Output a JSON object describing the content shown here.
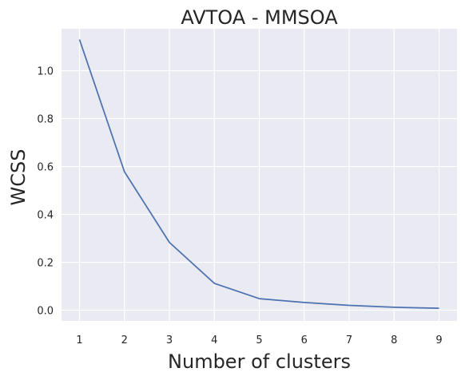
{
  "chart_data": {
    "type": "line",
    "title": "AVTOA - MMSOA",
    "xlabel": "Number of clusters",
    "ylabel": "WCSS",
    "x": [
      1,
      2,
      3,
      4,
      5,
      6,
      7,
      8,
      9
    ],
    "series": [
      {
        "values": [
          1.13,
          0.578,
          0.283,
          0.112,
          0.048,
          0.032,
          0.02,
          0.012,
          0.008
        ]
      }
    ],
    "xticks": [
      "1",
      "2",
      "3",
      "4",
      "5",
      "6",
      "7",
      "8",
      "9"
    ],
    "yticks": [
      "0.0",
      "0.2",
      "0.4",
      "0.6",
      "0.8",
      "1.0"
    ],
    "xlim": [
      0.6,
      9.4
    ],
    "ylim": [
      -0.045,
      1.175
    ],
    "grid": true,
    "colors": {
      "background": "#eaeaf2",
      "grid": "#ffffff",
      "line": "#4c72b0",
      "text": "#262626"
    }
  }
}
